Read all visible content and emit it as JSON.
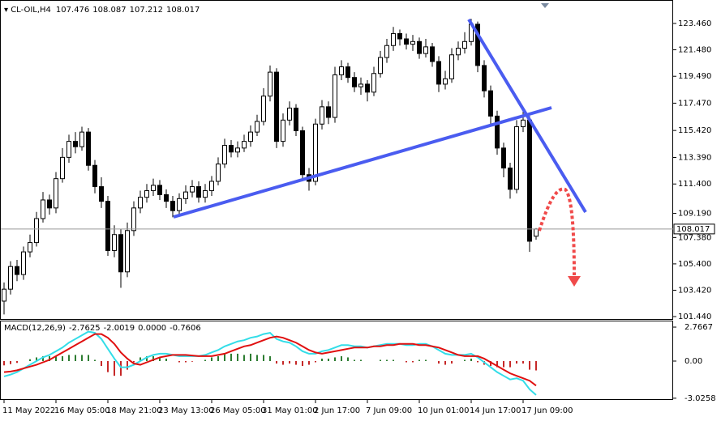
{
  "chart_data": {
    "type": "candlestick",
    "symbol": "CL-OIL,H4",
    "categories": [
      "11 May 2022",
      null,
      null,
      null,
      null,
      null,
      null,
      null,
      "16 May 05:00",
      null,
      null,
      null,
      null,
      null,
      null,
      null,
      "18 May 21:00",
      null,
      null,
      null,
      null,
      null,
      null,
      null,
      "23 May 13:00",
      null,
      null,
      null,
      null,
      null,
      null,
      null,
      "26 May 05:00",
      null,
      null,
      null,
      null,
      null,
      null,
      null,
      "31 May 01:00",
      null,
      null,
      null,
      null,
      null,
      null,
      null,
      "2 Jun 17:00",
      null,
      null,
      null,
      null,
      null,
      null,
      null,
      "7 Jun 09:00",
      null,
      null,
      null,
      null,
      null,
      null,
      null,
      "10 Jun 01:00",
      null,
      null,
      null,
      null,
      null,
      null,
      null,
      "14 Jun 17:00",
      null,
      null,
      null,
      null,
      null,
      null,
      null,
      "17 Jun 09:00",
      null,
      null
    ],
    "open": [
      102.6,
      103.5,
      105.2,
      104.6,
      106.3,
      107.0,
      108.8,
      110.2,
      109.6,
      111.8,
      113.4,
      114.6,
      114.2,
      115.3,
      112.8,
      111.2,
      110.1,
      106.4,
      107.6,
      104.8,
      107.9,
      109.6,
      110.4,
      110.9,
      111.3,
      110.6,
      110.1,
      109.4,
      110.3,
      110.8,
      111.2,
      110.4,
      110.9,
      111.6,
      112.9,
      114.3,
      113.8,
      114.1,
      114.6,
      115.3,
      116.1,
      118.0,
      119.8,
      114.6,
      116.2,
      117.1,
      115.4,
      112.1,
      111.6,
      115.9,
      117.2,
      116.4,
      119.6,
      120.2,
      119.4,
      118.7,
      118.9,
      118.3,
      119.7,
      120.9,
      121.8,
      122.7,
      122.3,
      121.9,
      122.1,
      121.2,
      121.7,
      120.6,
      118.9,
      119.3,
      121.1,
      121.6,
      122.1,
      123.4,
      120.3,
      118.4,
      116.5,
      114.1,
      112.6,
      111.0,
      115.7,
      116.2,
      107.476
    ],
    "high": [
      104.0,
      105.6,
      105.7,
      106.7,
      107.6,
      109.3,
      110.8,
      110.6,
      112.3,
      114.1,
      115.1,
      115.3,
      115.7,
      115.6,
      113.2,
      111.9,
      110.5,
      108.3,
      108.0,
      108.5,
      110.1,
      110.9,
      111.4,
      111.8,
      111.7,
      111.0,
      110.5,
      110.7,
      111.3,
      111.7,
      111.6,
      111.4,
      112.0,
      113.4,
      114.8,
      114.7,
      114.6,
      115.1,
      115.8,
      116.6,
      118.6,
      120.3,
      120.1,
      116.7,
      117.6,
      117.4,
      115.7,
      112.6,
      116.3,
      117.7,
      117.6,
      120.2,
      120.7,
      120.5,
      119.8,
      119.4,
      119.2,
      120.2,
      121.4,
      122.3,
      123.2,
      123.0,
      122.7,
      122.6,
      122.4,
      122.3,
      122.0,
      121.0,
      119.9,
      121.6,
      122.1,
      122.8,
      123.8,
      123.6,
      120.7,
      118.8,
      116.9,
      114.5,
      113.0,
      116.2,
      116.9,
      116.5,
      108.087
    ],
    "low": [
      101.6,
      103.1,
      104.1,
      104.2,
      105.9,
      106.7,
      108.5,
      109.1,
      109.2,
      111.5,
      113.0,
      113.7,
      113.9,
      112.4,
      110.7,
      109.6,
      106.0,
      105.9,
      103.6,
      104.4,
      107.5,
      109.2,
      110.0,
      110.5,
      110.2,
      109.6,
      108.9,
      109.0,
      109.9,
      110.4,
      110.0,
      110.0,
      110.5,
      111.3,
      112.6,
      113.4,
      113.4,
      113.8,
      114.2,
      115.0,
      115.8,
      117.6,
      114.1,
      114.2,
      115.8,
      115.0,
      111.6,
      110.9,
      111.3,
      115.5,
      115.9,
      116.0,
      119.2,
      119.0,
      118.3,
      118.1,
      117.6,
      118.0,
      119.4,
      120.5,
      121.4,
      121.8,
      121.5,
      121.4,
      120.8,
      120.9,
      120.2,
      118.3,
      118.5,
      119.0,
      120.7,
      121.2,
      121.8,
      119.8,
      117.9,
      115.9,
      113.6,
      111.9,
      110.3,
      110.7,
      115.3,
      106.3,
      107.212
    ],
    "close": [
      103.5,
      105.2,
      104.6,
      106.3,
      107.0,
      108.8,
      110.2,
      109.6,
      111.8,
      113.4,
      114.6,
      114.2,
      115.3,
      112.8,
      111.2,
      110.1,
      106.4,
      107.6,
      104.8,
      107.9,
      109.6,
      110.4,
      110.9,
      111.3,
      110.6,
      110.1,
      109.4,
      110.3,
      110.8,
      111.2,
      110.4,
      110.9,
      111.6,
      112.9,
      114.3,
      113.8,
      114.1,
      114.6,
      115.3,
      116.1,
      118.0,
      119.8,
      114.6,
      116.2,
      117.1,
      115.4,
      112.1,
      111.6,
      115.9,
      117.2,
      116.4,
      119.6,
      120.2,
      119.4,
      118.7,
      118.9,
      118.3,
      119.7,
      120.9,
      121.8,
      122.7,
      122.3,
      121.9,
      122.1,
      121.2,
      121.7,
      120.6,
      118.9,
      119.3,
      121.1,
      121.6,
      122.1,
      123.4,
      120.3,
      118.4,
      116.5,
      114.1,
      112.6,
      111.0,
      115.7,
      116.2,
      107.1,
      108.017
    ],
    "color": "#000000",
    "ylim": [
      101.32,
      125.22
    ],
    "yticks": [
      {
        "value": 123.46,
        "label": "123.460"
      },
      {
        "value": 121.48,
        "label": "121.480"
      },
      {
        "value": 119.49,
        "label": "119.490"
      },
      {
        "value": 117.47,
        "label": "117.470"
      },
      {
        "value": 115.42,
        "label": "115.420"
      },
      {
        "value": 113.39,
        "label": "113.390"
      },
      {
        "value": 111.4,
        "label": "111.400"
      },
      {
        "value": 109.19,
        "label": "109.190"
      },
      {
        "value": 107.38,
        "label": "107.380"
      },
      {
        "value": 105.4,
        "label": "105.400"
      },
      {
        "value": 103.42,
        "label": "103.420"
      },
      {
        "value": 101.44,
        "label": "101.440"
      }
    ],
    "macd": {
      "title": "MACD(12,26,9)",
      "main": {
        "color": "#33dde8",
        "values": [
          -1.25,
          -1.1,
          -0.9,
          -0.6,
          -0.3,
          0.0,
          0.3,
          0.5,
          0.8,
          1.1,
          1.5,
          1.8,
          2.1,
          2.4,
          2.3,
          1.8,
          1.0,
          0.2,
          -0.5,
          -0.5,
          -0.3,
          0.0,
          0.3,
          0.5,
          0.6,
          0.6,
          0.5,
          0.4,
          0.4,
          0.4,
          0.4,
          0.5,
          0.7,
          0.9,
          1.2,
          1.4,
          1.6,
          1.7,
          1.9,
          2.0,
          2.2,
          2.3,
          1.8,
          1.6,
          1.5,
          1.2,
          0.8,
          0.6,
          0.6,
          0.8,
          0.9,
          1.1,
          1.3,
          1.3,
          1.2,
          1.2,
          1.1,
          1.2,
          1.3,
          1.4,
          1.4,
          1.4,
          1.3,
          1.3,
          1.4,
          1.4,
          1.2,
          0.9,
          0.6,
          0.5,
          0.5,
          0.5,
          0.6,
          0.3,
          -0.1,
          -0.5,
          -0.9,
          -1.2,
          -1.5,
          -1.4,
          -1.6,
          -2.3,
          -2.7625
        ]
      },
      "signal": {
        "color": "#e01010",
        "values": [
          -0.9,
          -0.85,
          -0.75,
          -0.6,
          -0.45,
          -0.3,
          -0.1,
          0.1,
          0.4,
          0.7,
          1.0,
          1.3,
          1.6,
          1.9,
          2.2,
          2.2,
          1.9,
          1.4,
          0.7,
          0.2,
          -0.2,
          -0.3,
          -0.1,
          0.1,
          0.3,
          0.4,
          0.5,
          0.5,
          0.5,
          0.45,
          0.4,
          0.4,
          0.4,
          0.5,
          0.6,
          0.8,
          1.0,
          1.2,
          1.3,
          1.5,
          1.7,
          1.9,
          2.0,
          1.9,
          1.7,
          1.5,
          1.2,
          0.9,
          0.7,
          0.6,
          0.7,
          0.8,
          0.9,
          1.0,
          1.1,
          1.1,
          1.1,
          1.2,
          1.2,
          1.3,
          1.3,
          1.4,
          1.4,
          1.4,
          1.3,
          1.3,
          1.2,
          1.1,
          0.9,
          0.7,
          0.5,
          0.4,
          0.4,
          0.4,
          0.2,
          -0.1,
          -0.4,
          -0.7,
          -1.0,
          -1.2,
          -1.4,
          -1.6,
          -2.0019
        ]
      },
      "histogram": {
        "up_color": "#2e7d32",
        "down_color": "#c62828",
        "values": [
          -0.35,
          -0.25,
          -0.15,
          0,
          0.15,
          0.3,
          0.4,
          0.4,
          0.4,
          0.4,
          0.5,
          0.5,
          0.5,
          0.5,
          0.1,
          -0.4,
          -0.9,
          -1.2,
          -1.2,
          -0.7,
          -0.1,
          0.3,
          0.4,
          0.4,
          0.3,
          0.2,
          0,
          -0.1,
          -0.1,
          -0.05,
          0,
          0.1,
          0.3,
          0.4,
          0.6,
          0.6,
          0.6,
          0.5,
          0.6,
          0.5,
          0.5,
          0.4,
          -0.2,
          -0.3,
          -0.2,
          -0.3,
          -0.4,
          -0.3,
          -0.1,
          0.2,
          0.2,
          0.3,
          0.4,
          0.3,
          0.1,
          0.1,
          0,
          0,
          0.1,
          0.1,
          0.1,
          0,
          -0.1,
          -0.1,
          0.1,
          0.1,
          0,
          -0.2,
          -0.3,
          -0.2,
          0,
          0.1,
          0.2,
          -0.1,
          -0.3,
          -0.4,
          -0.5,
          -0.5,
          -0.5,
          -0.2,
          -0.2,
          -0.7,
          -0.7606
        ]
      },
      "extra": {
        "value": 0,
        "label": "0.0000"
      },
      "ylim": [
        -3.1,
        3.23
      ],
      "yticks": [
        2.7667,
        {
          "value": 0,
          "label": "0.00"
        },
        -3.0258
      ]
    }
  }
}
